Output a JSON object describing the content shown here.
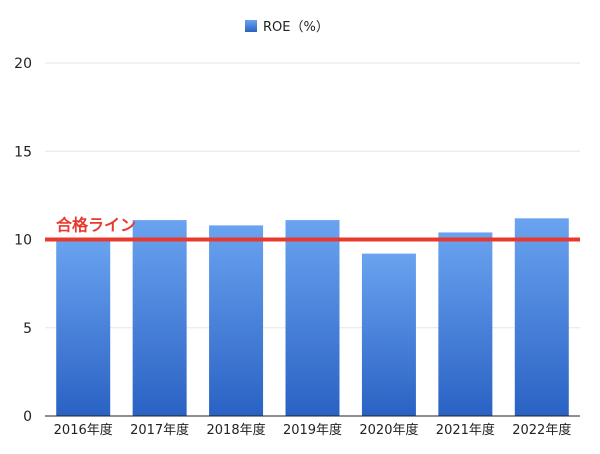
{
  "chart_data": {
    "type": "bar",
    "categories": [
      "2016年度",
      "2017年度",
      "2018年度",
      "2019年度",
      "2020年度",
      "2021年度",
      "2022年度"
    ],
    "series": [
      {
        "name": "ROE（%）",
        "values": [
          10.0,
          11.1,
          10.8,
          11.1,
          9.2,
          10.4,
          11.2
        ]
      }
    ],
    "ylim": [
      0,
      20
    ],
    "yticks": [
      0,
      5,
      10,
      15,
      20
    ],
    "grid": true,
    "legend": "top-center",
    "reference_line": {
      "value": 10,
      "label": "合格ライン"
    },
    "colors": {
      "bar_top": "#6aa3f0",
      "bar_bottom": "#2a62c4",
      "reference": "#e8392e",
      "grid": "#e6e6e6"
    }
  }
}
